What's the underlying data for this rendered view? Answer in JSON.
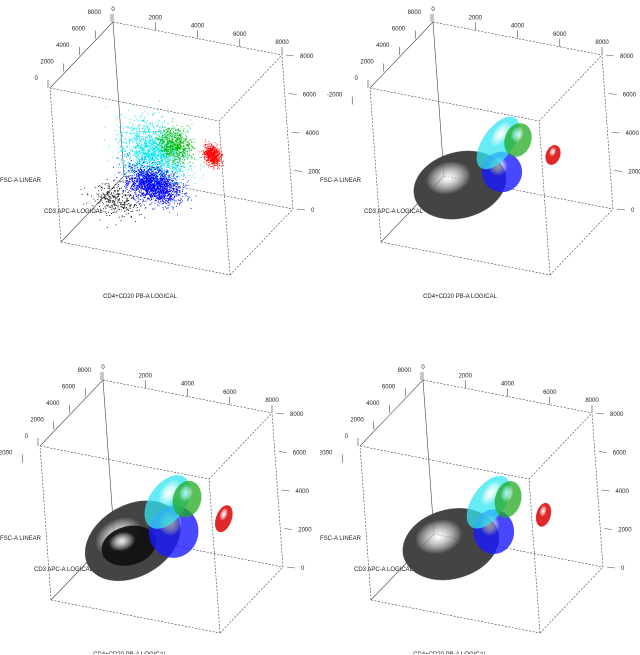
{
  "chart_data": [
    {
      "type": "scatter3d",
      "axes": {
        "x_label": "CD4+CD20 PB-A LOGICAL",
        "y_label": "FSC-A LINEAR",
        "z_label": "CD3 APC-A LOGICAL"
      },
      "x_ticks": [
        "0",
        "2000",
        "4000",
        "6000",
        "8000"
      ],
      "y_ticks": [
        "0",
        "2000",
        "4000",
        "6000",
        "8000"
      ],
      "z_ticks": [
        "0",
        "2000",
        "4000",
        "6000",
        "8000"
      ],
      "clusters": [
        {
          "name": "black",
          "color": "#000000",
          "center": [
            1110,
            700,
            4000
          ],
          "sd": [
            500,
            450
          ],
          "count": 300
        },
        {
          "name": "cyan",
          "color": "#00e5ee",
          "center": [
            3100,
            3570,
            4000
          ],
          "sd": [
            700,
            800
          ],
          "count": 1800
        },
        {
          "name": "blue",
          "color": "#0000ff",
          "center": [
            2990,
            1890,
            4000
          ],
          "sd": [
            600,
            450
          ],
          "count": 1800
        },
        {
          "name": "green",
          "color": "#00bb00",
          "center": [
            4180,
            4220,
            4000
          ],
          "sd": [
            350,
            420
          ],
          "count": 700
        },
        {
          "name": "red",
          "color": "#ff0000",
          "center": [
            5920,
            4070,
            4000
          ],
          "sd": [
            170,
            260
          ],
          "count": 600
        }
      ]
    },
    {
      "type": "ellipsoid3d",
      "axes": {
        "x_label": "CD4+CD20 PB-A LOGICAL",
        "y_label": "FSC-A LINEAR",
        "z_label": "CD3 APC-A LOGICAL"
      },
      "x_ticks": [
        "0",
        "2000",
        "4000",
        "6000",
        "8000"
      ],
      "y_ticks": [
        "0",
        "2000",
        "4000",
        "6000",
        "8000"
      ],
      "z_ticks": [
        "-2000",
        "0",
        "2000",
        "4000",
        "6000",
        "8000"
      ],
      "ellipsoids": [
        {
          "name": "gray",
          "color": "#444444",
          "opacity": 1,
          "center": [
            2360,
            1750,
            4000
          ],
          "radii": [
            2210,
            1710
          ],
          "tilt": -15
        },
        {
          "name": "blue",
          "color": "#1a1aff",
          "opacity": 0.8,
          "center": [
            4420,
            2870,
            4000
          ],
          "radii": [
            940,
            1040
          ],
          "tilt": 0
        },
        {
          "name": "cyan",
          "color": "#33e5f0",
          "opacity": 0.75,
          "center": [
            4330,
            4360,
            4000
          ],
          "radii": [
            705,
            1560
          ],
          "tilt": 35
        },
        {
          "name": "green",
          "color": "#22aa22",
          "opacity": 0.75,
          "center": [
            5300,
            4720,
            4000
          ],
          "radii": [
            610,
            880
          ],
          "tilt": 20
        },
        {
          "name": "red",
          "color": "#dd1111",
          "opacity": 0.9,
          "center": [
            6930,
            4290,
            4000
          ],
          "radii": [
            330,
            520
          ],
          "tilt": 20
        }
      ]
    },
    {
      "type": "ellipsoid3d",
      "axes": {
        "x_label": "CD4+CD20 PB-A LOGICAL",
        "y_label": "FSC-A LINEAR",
        "z_label": "CD3 APC-A LOGICAL"
      },
      "x_ticks": [
        "0",
        "2000",
        "4000",
        "6000",
        "8000"
      ],
      "y_ticks": [
        "0",
        "2000",
        "4000",
        "6000",
        "8000"
      ],
      "z_ticks": [
        "-2000",
        "0",
        "2000",
        "4000",
        "6000",
        "8000"
      ],
      "ellipsoids": [
        {
          "name": "gray",
          "color": "#444444",
          "opacity": 1,
          "center": [
            2500,
            1900,
            4000
          ],
          "radii": [
            2400,
            1850
          ],
          "tilt": -30
        },
        {
          "name": "black",
          "color": "#111111",
          "opacity": 0.95,
          "center": [
            2300,
            1600,
            4000
          ],
          "radii": [
            1300,
            1000
          ],
          "tilt": -15
        },
        {
          "name": "blue",
          "color": "#1a1aff",
          "opacity": 0.8,
          "center": [
            4500,
            2800,
            4000
          ],
          "radii": [
            1150,
            1350
          ],
          "tilt": 10
        },
        {
          "name": "cyan",
          "color": "#33e5f0",
          "opacity": 0.75,
          "center": [
            4300,
            4300,
            4000
          ],
          "radii": [
            850,
            1550
          ],
          "tilt": 35
        },
        {
          "name": "green",
          "color": "#22aa22",
          "opacity": 0.75,
          "center": [
            5250,
            4650,
            4000
          ],
          "radii": [
            650,
            950
          ],
          "tilt": 15
        },
        {
          "name": "red",
          "color": "#dd1111",
          "opacity": 0.9,
          "center": [
            6950,
            4000,
            4000
          ],
          "radii": [
            360,
            720
          ],
          "tilt": 20
        }
      ]
    },
    {
      "type": "ellipsoid3d",
      "axes": {
        "x_label": "CD4+CD20 PB-A LOGICAL",
        "y_label": "FSC-A LINEAR",
        "z_label": "CD3 APC-A LOGICAL"
      },
      "x_ticks": [
        "0",
        "2000",
        "4000",
        "6000",
        "8000"
      ],
      "y_ticks": [
        "0",
        "2000",
        "4000",
        "6000",
        "8000"
      ],
      "z_ticks": [
        "-2000",
        "0",
        "2000",
        "4000",
        "6000",
        "8000"
      ],
      "ellipsoids": [
        {
          "name": "gray",
          "color": "#444444",
          "opacity": 1,
          "center": [
            2400,
            1700,
            4000
          ],
          "radii": [
            2300,
            1800
          ],
          "tilt": -15
        },
        {
          "name": "blue",
          "color": "#1a1aff",
          "opacity": 0.8,
          "center": [
            4500,
            2800,
            4000
          ],
          "radii": [
            950,
            1150
          ],
          "tilt": 0
        },
        {
          "name": "cyan",
          "color": "#33e5f0",
          "opacity": 0.75,
          "center": [
            4350,
            4300,
            4000
          ],
          "radii": [
            750,
            1550
          ],
          "tilt": 35
        },
        {
          "name": "green",
          "color": "#22aa22",
          "opacity": 0.75,
          "center": [
            5300,
            4650,
            4000
          ],
          "radii": [
            600,
            950
          ],
          "tilt": 15
        },
        {
          "name": "red",
          "color": "#dd1111",
          "opacity": 0.9,
          "center": [
            6950,
            4200,
            4000
          ],
          "radii": [
            330,
            620
          ],
          "tilt": 15
        }
      ]
    }
  ]
}
